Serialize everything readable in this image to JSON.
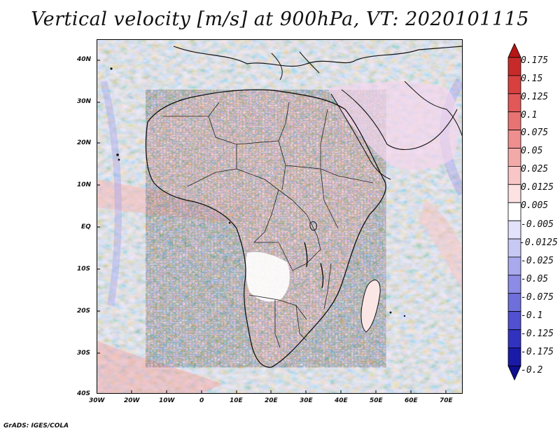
{
  "title": "Vertical velocity [m/s] at 900hPa, VT: 2020101115",
  "credit": "GrADS: IGES/COLA",
  "map": {
    "lon_labels": [
      "30W",
      "20W",
      "10W",
      "0",
      "10E",
      "20E",
      "30E",
      "40E",
      "50E",
      "60E",
      "70E"
    ],
    "lat_labels": [
      "40N",
      "30N",
      "20N",
      "10N",
      "EQ",
      "10S",
      "20S",
      "30S",
      "40S"
    ],
    "lon_range": [
      -30,
      75
    ],
    "lat_range": [
      -40,
      45
    ]
  },
  "colorbar": {
    "labels": [
      "0.175",
      "0.15",
      "0.125",
      "0.1",
      "0.075",
      "0.05",
      "0.025",
      "0.0125",
      "0.005",
      "-0.005",
      "-0.0125",
      "-0.025",
      "-0.05",
      "-0.075",
      "-0.1",
      "-0.125",
      "-0.175",
      "-0.2"
    ],
    "colors": [
      "#b51616",
      "#c82a2a",
      "#d84040",
      "#e25858",
      "#e97373",
      "#ef8e8e",
      "#f4a9a9",
      "#f8c6c6",
      "#fce2e2",
      "#ffffff",
      "#e2e2fb",
      "#c8c8f5",
      "#a9a9ee",
      "#8c8ce6",
      "#6f6fdc",
      "#5050d0",
      "#3232c0",
      "#1a1aa8",
      "#0e0e90"
    ]
  }
}
